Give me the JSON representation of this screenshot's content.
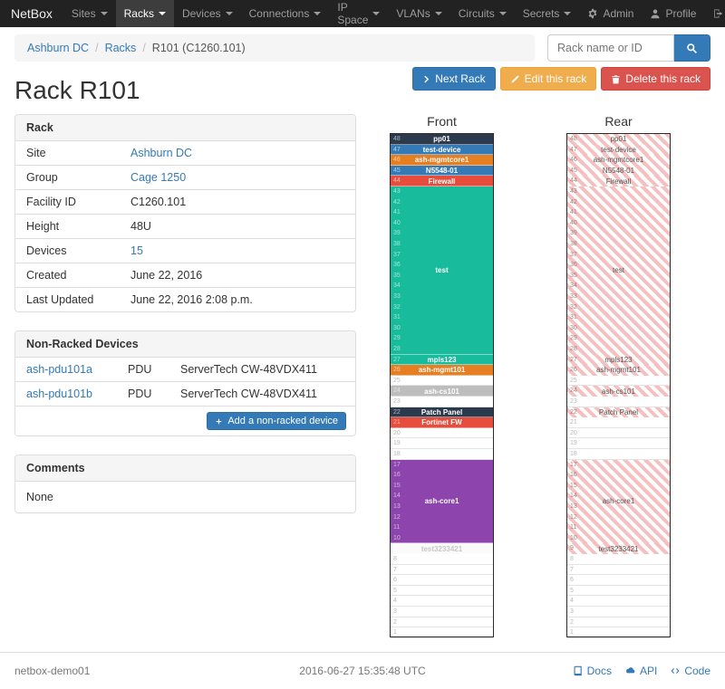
{
  "navbar": {
    "brand": "NetBox",
    "items": [
      {
        "label": "Sites"
      },
      {
        "label": "Racks",
        "active": true
      },
      {
        "label": "Devices"
      },
      {
        "label": "Connections"
      },
      {
        "label": "IP Space"
      },
      {
        "label": "VLANs"
      },
      {
        "label": "Circuits"
      },
      {
        "label": "Secrets"
      }
    ],
    "right_items": [
      {
        "label": "Admin",
        "icon": "gear-icon"
      },
      {
        "label": "Profile",
        "icon": "user-icon"
      },
      {
        "label": "Log out",
        "icon": "logout-icon"
      }
    ]
  },
  "breadcrumb": [
    {
      "label": "Ashburn DC",
      "link": true
    },
    {
      "label": "Racks",
      "link": true
    },
    {
      "label": "R101 (C1260.101)",
      "link": false
    }
  ],
  "search": {
    "placeholder": "Rack name or ID"
  },
  "actions": {
    "next_rack": "Next Rack",
    "edit": "Edit this rack",
    "delete": "Delete this rack"
  },
  "page_title": "Rack R101",
  "rack_panel": {
    "title": "Rack",
    "rows": [
      {
        "label": "Site",
        "value": "Ashburn DC",
        "link": true
      },
      {
        "label": "Group",
        "value": "Cage 1250",
        "link": true
      },
      {
        "label": "Facility ID",
        "value": "C1260.101",
        "link": false
      },
      {
        "label": "Height",
        "value": "48U",
        "link": false
      },
      {
        "label": "Devices",
        "value": "15",
        "link": true
      },
      {
        "label": "Created",
        "value": "June 22, 2016",
        "link": false
      },
      {
        "label": "Last Updated",
        "value": "June 22, 2016 2:08 p.m.",
        "link": false
      }
    ]
  },
  "non_racked": {
    "title": "Non-Racked Devices",
    "rows": [
      {
        "name": "ash-pdu101a",
        "role": "PDU",
        "model": "ServerTech CW-48VDX411"
      },
      {
        "name": "ash-pdu101b",
        "role": "PDU",
        "model": "ServerTech CW-48VDX411"
      }
    ],
    "add_button": "Add a non-racked device"
  },
  "comments": {
    "title": "Comments",
    "body": "None"
  },
  "elevations": {
    "front_label": "Front",
    "rear_label": "Rear",
    "units": 48,
    "hatch": {
      "bg": "#ffffff",
      "stripe": "#f5c0c0",
      "label": "#555555"
    },
    "devices": [
      {
        "name": "pp01",
        "top_unit": 48,
        "u_height": 1,
        "color": "#2c3a4d",
        "text_color": "#ffffff",
        "show_rear": true
      },
      {
        "name": "test-device",
        "top_unit": 47,
        "u_height": 1,
        "color": "#337ab7",
        "text_color": "#ffffff",
        "show_rear": true
      },
      {
        "name": "ash-mgmtcore1",
        "top_unit": 46,
        "u_height": 1,
        "color": "#e67e22",
        "text_color": "#ffffff",
        "show_rear": true
      },
      {
        "name": "N5548-01",
        "top_unit": 45,
        "u_height": 1,
        "color": "#337ab7",
        "text_color": "#ffffff",
        "show_rear": true
      },
      {
        "name": "Firewall",
        "top_unit": 44,
        "u_height": 1,
        "color": "#e74c3c",
        "text_color": "#ffffff",
        "show_rear": true
      },
      {
        "name": "test",
        "top_unit": 43,
        "u_height": 16,
        "color": "#18bc9c",
        "text_color": "#ffffff",
        "show_rear": true
      },
      {
        "name": "mpls123",
        "top_unit": 27,
        "u_height": 1,
        "color": "#18bc9c",
        "text_color": "#ffffff",
        "show_rear": true
      },
      {
        "name": "ash-mgmt101",
        "top_unit": 26,
        "u_height": 1,
        "color": "#e67e22",
        "text_color": "#ffffff",
        "show_rear": true
      },
      {
        "name": "ash-cs101",
        "top_unit": 24,
        "u_height": 1,
        "color": "#bdbdbd",
        "text_color": "#ffffff",
        "show_rear": true
      },
      {
        "name": "Patch Panel",
        "top_unit": 22,
        "u_height": 1,
        "color": "#2c3a4d",
        "text_color": "#ffffff",
        "show_rear": true
      },
      {
        "name": "Fortinet FW",
        "top_unit": 21,
        "u_height": 1,
        "color": "#e74c3c",
        "text_color": "#ffffff",
        "show_rear": false
      },
      {
        "name": "ash-core1",
        "top_unit": 17,
        "u_height": 8,
        "color": "#8e44ad",
        "text_color": "#ffffff",
        "show_rear": true
      },
      {
        "name": "test3233421",
        "top_unit": 9,
        "u_height": 1,
        "color": "#fafafa",
        "text_color": "#c8c8c8",
        "show_rear": true
      }
    ]
  },
  "footer": {
    "left": "netbox-demo01",
    "center": "2016-06-27 15:35:48 UTC",
    "links": [
      {
        "label": "Docs",
        "icon": "book-icon"
      },
      {
        "label": "API",
        "icon": "cloud-icon"
      },
      {
        "label": "Code",
        "icon": "code-icon"
      }
    ]
  }
}
